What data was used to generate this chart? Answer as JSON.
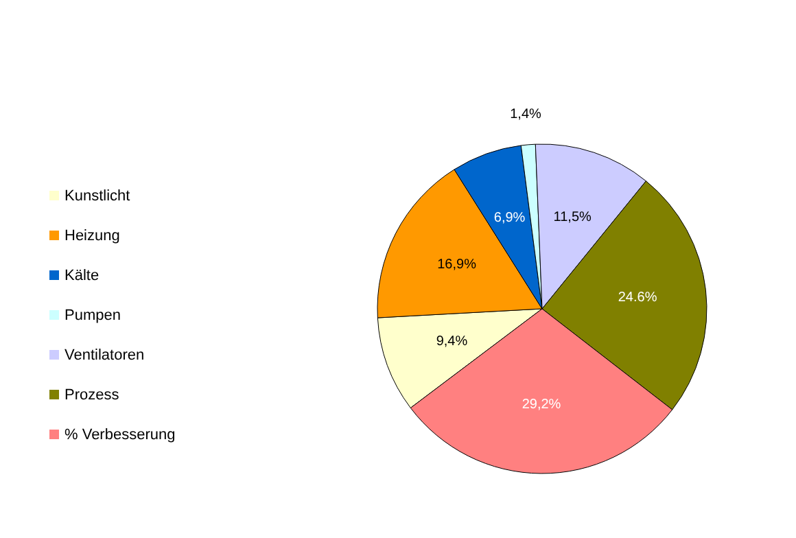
{
  "chart_data": {
    "type": "pie",
    "categories": [
      "Kunstlicht",
      "Heizung",
      "Kälte",
      "Pumpen",
      "Ventilatoren",
      "Prozess",
      "% Verbesserung"
    ],
    "values": [
      9.4,
      16.9,
      6.9,
      1.4,
      11.5,
      24.6,
      29.2
    ],
    "value_labels": [
      "9,4%",
      "16,9%",
      "6,9%",
      "1,4%",
      "11,5%",
      "24.6%",
      "29,2%"
    ],
    "colors": [
      "#ffffcc",
      "#ff9900",
      "#0066cc",
      "#ccffff",
      "#ccccff",
      "#808000",
      "#ff8080"
    ],
    "legend": "left"
  }
}
